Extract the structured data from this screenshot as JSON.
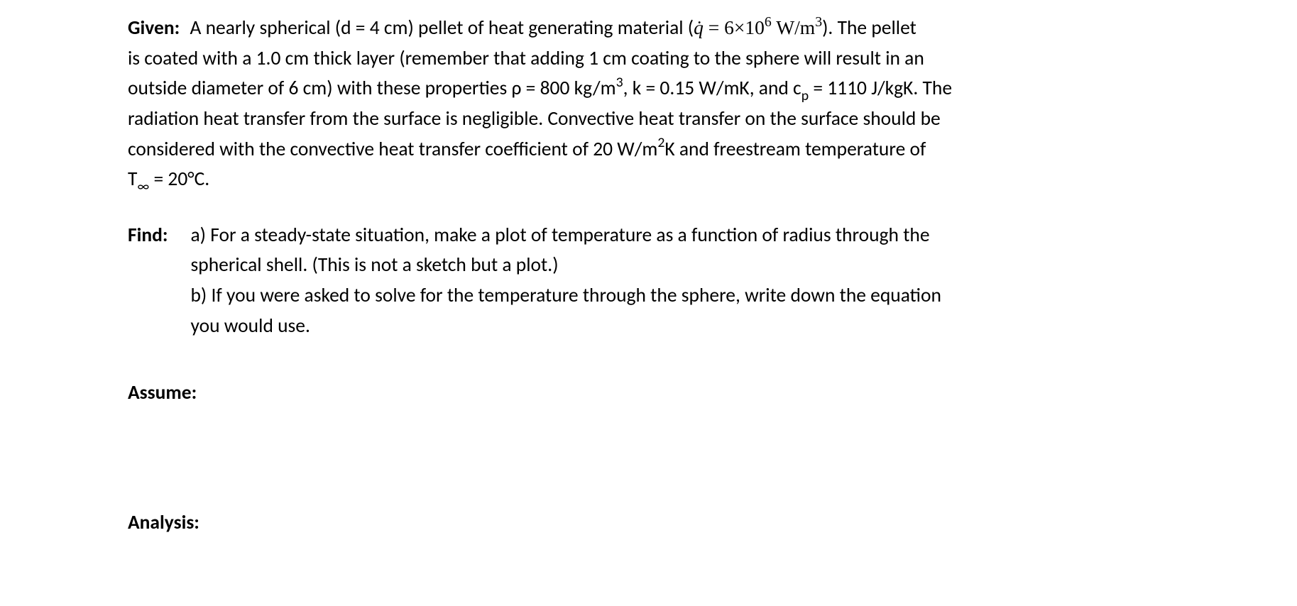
{
  "given": {
    "label": "Given:",
    "l1_a": "A nearly spherical (d = 4 cm) pellet of heat generating material (",
    "qdot_sym": "q̇",
    "qdot_eq": " = 6",
    "times": "×",
    "ten": "10",
    "exp6": "6",
    "wm3_a": "  W/m",
    "exp3": "3",
    "l1_b": ").  The pellet",
    "l2": "is coated with a 1.0 cm thick layer (remember that adding 1 cm coating to the sphere will result in an",
    "l3_a": "outside diameter of 6 cm) with these properties ρ = 800 kg/m",
    "l3_exp3": "3",
    "l3_b": ", k = 0.15 W/mK, and c",
    "l3_sub_p": "p",
    "l3_c": " = 1110 J/kgK.  The",
    "l4": "radiation heat transfer from the surface is negligible.  Convective heat transfer on the surface should be",
    "l5_a": "considered with the convective heat transfer coefficient of 20 W/m",
    "l5_exp2": "2",
    "l5_b": "K and freestream temperature of",
    "l6_a": "T",
    "l6_inf": "∞",
    "l6_b": " = 20°C."
  },
  "find": {
    "label": "Find:",
    "a1": "a) For a steady-state situation, make a plot of temperature as a function of radius through the",
    "a2": "spherical shell.  (This is not a sketch but a plot.)",
    "b1": "b) If you were asked to solve for the temperature through the sphere, write down the equation",
    "b2": "you would use."
  },
  "assume": {
    "label": "Assume:"
  },
  "analysis": {
    "label": "Analysis:"
  }
}
